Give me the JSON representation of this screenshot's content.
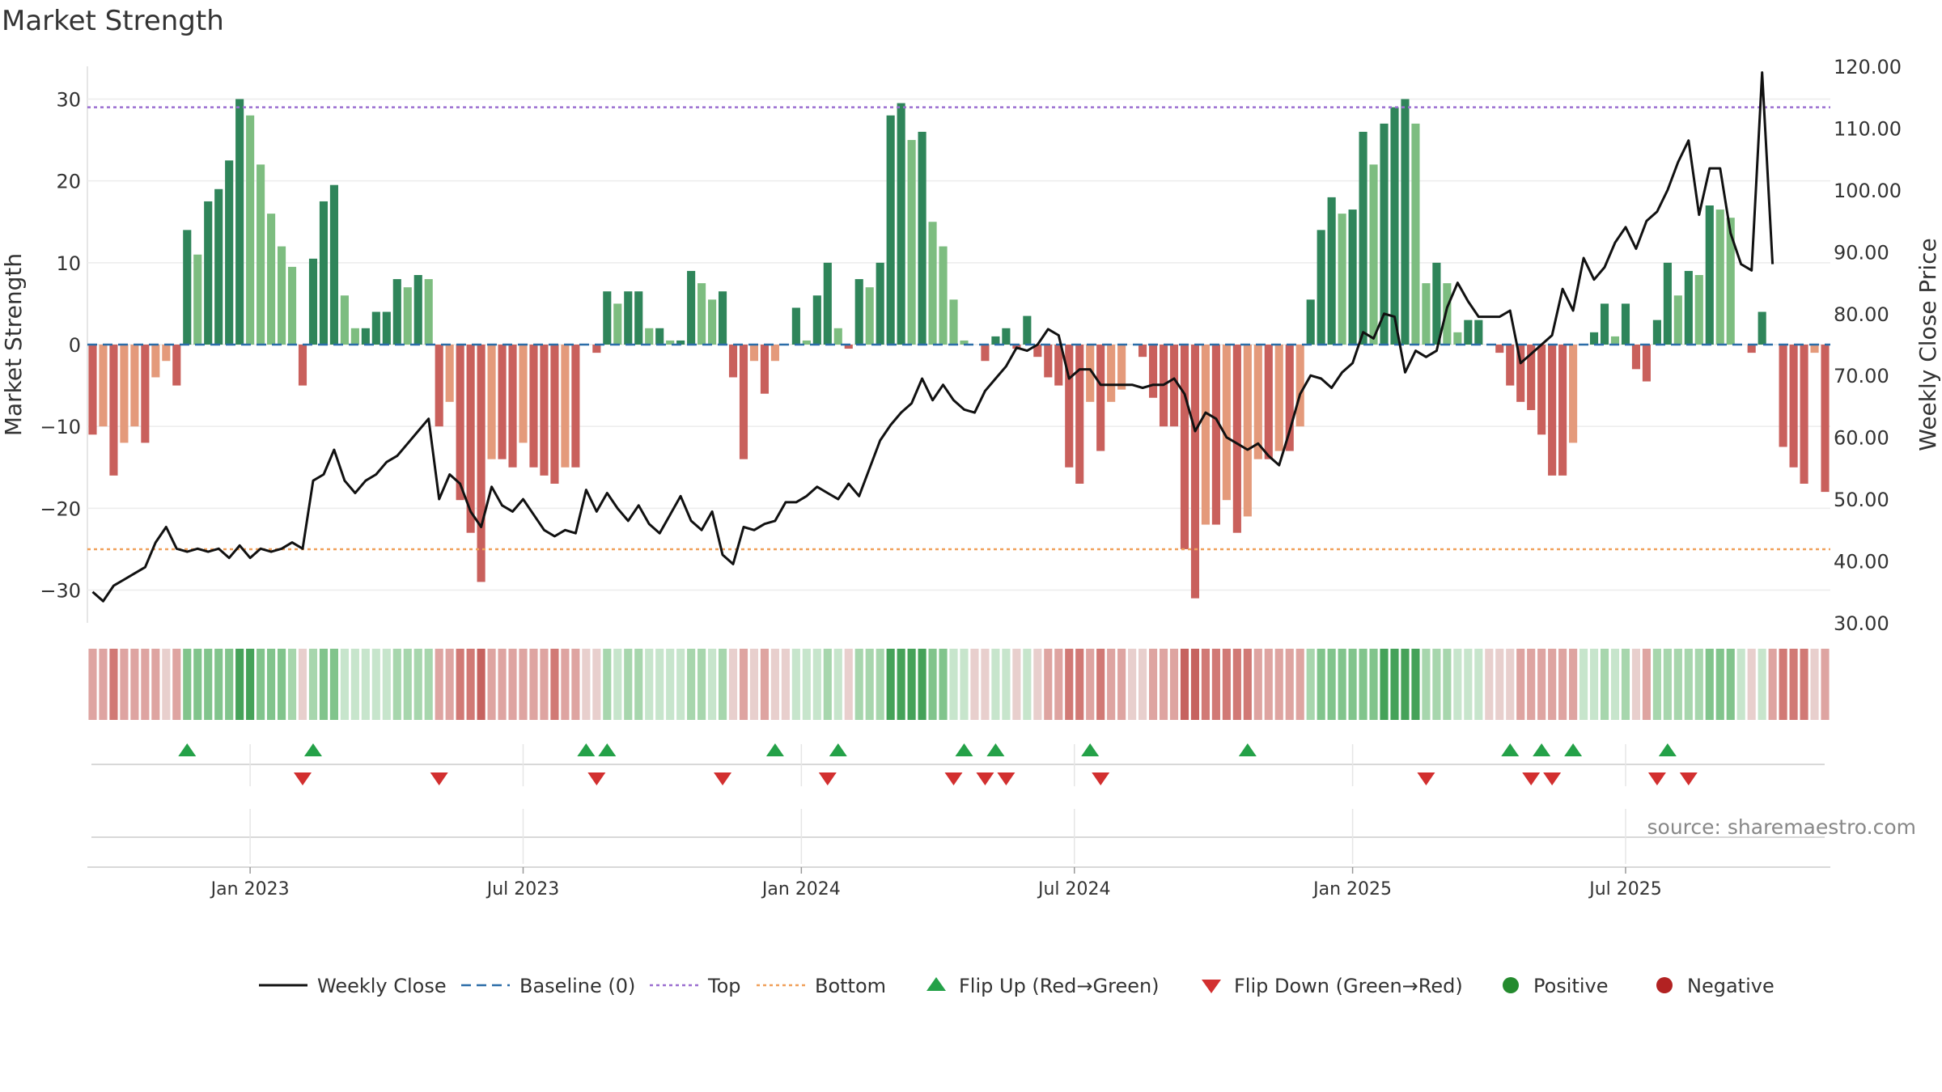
{
  "chart_data": {
    "type": "bar",
    "title": "Market Strength",
    "source": "source: sharemaestro.com",
    "left_axis": {
      "label": "Market Strength",
      "ylim": [
        -34,
        34
      ],
      "ticks": [
        30,
        20,
        10,
        0,
        -10,
        -20,
        -30
      ]
    },
    "right_axis": {
      "label": "Weekly Close Price",
      "ylim": [
        30,
        120
      ],
      "ticks": [
        "120.00",
        "110.00",
        "100.00",
        "90.00",
        "80.00",
        "70.00",
        "60.00",
        "50.00",
        "40.00",
        "30.00"
      ]
    },
    "x_ticks": [
      "Jan 2023",
      "Jul 2023",
      "Jan 2024",
      "Jul 2024",
      "Jan 2025",
      "Jul 2025"
    ],
    "x_tick_positions": [
      15.5,
      41.5,
      68,
      94,
      120.5,
      146.5
    ],
    "top_level": 29,
    "bottom_level": -25,
    "strength": [
      -11,
      -10,
      -16,
      -12,
      -10,
      -12,
      -4,
      -2,
      -5,
      14,
      11,
      17.5,
      19,
      22.5,
      30,
      28,
      22,
      16,
      12,
      9.5,
      -5,
      10.5,
      17.5,
      19.5,
      6,
      2,
      2,
      4,
      4,
      8,
      7,
      8.5,
      8,
      -10,
      -7,
      -19,
      -23,
      -29,
      -14,
      -14,
      -15,
      -12,
      -15,
      -16,
      -17,
      -15,
      -15,
      0,
      -1,
      6.5,
      5,
      6.5,
      6.5,
      2,
      2,
      0.5,
      0.5,
      9,
      7.5,
      5.5,
      6.5,
      -4,
      -14,
      -2,
      -6,
      -2,
      0,
      4.5,
      0.5,
      6,
      10,
      2,
      -0.5,
      8,
      7,
      10,
      28,
      29.5,
      25,
      26,
      15,
      12,
      5.5,
      0.5,
      0,
      -2,
      1,
      2,
      -0.5,
      3.5,
      -1.5,
      -4,
      -5,
      -15,
      -17,
      -7,
      -13,
      -7,
      -5.5,
      0,
      -1.5,
      -6.5,
      -10,
      -10,
      -25,
      -31,
      -22,
      -22,
      -19,
      -23,
      -21,
      -14,
      -14,
      -13,
      -13,
      -10,
      5.5,
      14,
      18,
      16,
      16.5,
      26,
      22,
      27,
      29,
      30,
      27,
      7.5,
      10,
      7.5,
      1.5,
      3,
      3,
      0,
      -1,
      -5,
      -7,
      -8,
      -11,
      -16,
      -16,
      -12,
      0,
      1.5,
      5,
      1,
      5,
      -3,
      -4.5,
      3,
      10,
      6,
      9,
      8.5,
      17,
      16.5,
      15.5,
      0,
      -1,
      4,
      0,
      -12.5,
      -15,
      -17,
      -1,
      -18
    ],
    "weekly_close": [
      35,
      33.5,
      36,
      37,
      38,
      39,
      43,
      45.5,
      42,
      41.5,
      42,
      41.5,
      42,
      40.5,
      42.5,
      40.5,
      42,
      41.5,
      42,
      43,
      42,
      53,
      54,
      58,
      53,
      51,
      53,
      54,
      56,
      57,
      59,
      61,
      63,
      50,
      54,
      52.5,
      48,
      45.5,
      52,
      49,
      48,
      50,
      47.5,
      45,
      44,
      45,
      44.5,
      51.5,
      48,
      51,
      48.5,
      46.5,
      49,
      46,
      44.5,
      47.5,
      50.5,
      46.5,
      45,
      48,
      41,
      39.5,
      45.5,
      45,
      46,
      46.5,
      49.5,
      49.5,
      50.5,
      52,
      51,
      50,
      52.5,
      50.5,
      55,
      59.5,
      62,
      64,
      65.5,
      69.5,
      66,
      68.5,
      66,
      64.5,
      64,
      67.5,
      69.5,
      71.5,
      74.5,
      74,
      75,
      77.5,
      76.5,
      69.5,
      71,
      71,
      68.5,
      68.5,
      68.5,
      68.5,
      68,
      68.5,
      68.5,
      69.5,
      67,
      61,
      64,
      63,
      60,
      59,
      58,
      59,
      57,
      55.5,
      61,
      67,
      70,
      69.5,
      68,
      70.5,
      72,
      77,
      76,
      80,
      79.5,
      70.5,
      74,
      73,
      74,
      81,
      85,
      82,
      79.5,
      79.5,
      79.5,
      80.5,
      72,
      73.5,
      75,
      76.5,
      84,
      80.5,
      89,
      85.5,
      87.5,
      91.5,
      94,
      90.5,
      95,
      96.5,
      100,
      104.5,
      108,
      96,
      103.5,
      103.5,
      93,
      88,
      87,
      119,
      88
    ],
    "bar_colors": [
      "rgb(222,164,161)",
      "rgb(222,164,161)",
      "rgb(209,121,117)",
      "rgb(222,164,161)",
      "rgb(222,164,161)",
      "rgb(222,164,161)",
      "rgb(222,164,161)",
      "rgb(232,207,205)",
      "rgb(222,164,161)",
      "rgb(129,196,140)",
      "rgb(129,196,140)",
      "rgb(129,196,140)",
      "rgb(129,196,140)",
      "rgb(129,196,140)",
      "rgb(69,162,89)",
      "rgb(69,162,89)",
      "rgb(129,196,140)",
      "rgb(129,196,140)",
      "rgb(129,196,140)",
      "rgb(167,214,173)",
      "rgb(232,207,205)",
      "rgb(167,214,173)",
      "rgb(129,196,140)",
      "rgb(129,196,140)",
      "rgb(199,229,204)",
      "rgb(199,229,204)",
      "rgb(199,229,204)",
      "rgb(199,229,204)",
      "rgb(199,229,204)",
      "rgb(167,214,173)",
      "rgb(167,214,173)",
      "rgb(167,214,173)",
      "rgb(167,214,173)",
      "rgb(222,164,161)",
      "rgb(222,164,161)",
      "rgb(209,121,117)",
      "rgb(209,121,117)",
      "rgb(198,98,95)",
      "rgb(222,164,161)",
      "rgb(222,164,161)",
      "rgb(222,164,161)",
      "rgb(222,164,161)",
      "rgb(222,164,161)",
      "rgb(222,164,161)",
      "rgb(209,121,117)",
      "rgb(222,164,161)",
      "rgb(222,164,161)",
      "rgb(232,207,205)",
      "rgb(232,207,205)",
      "rgb(167,214,173)",
      "rgb(199,229,204)",
      "rgb(167,214,173)",
      "rgb(167,214,173)",
      "rgb(199,229,204)",
      "rgb(199,229,204)",
      "rgb(199,229,204)",
      "rgb(199,229,204)",
      "rgb(167,214,173)",
      "rgb(167,214,173)",
      "rgb(199,229,204)",
      "rgb(167,214,173)",
      "rgb(232,207,205)",
      "rgb(222,164,161)",
      "rgb(232,207,205)",
      "rgb(222,164,161)",
      "rgb(232,207,205)",
      "rgb(232,207,205)",
      "rgb(199,229,204)",
      "rgb(199,229,204)",
      "rgb(199,229,204)",
      "rgb(167,214,173)",
      "rgb(199,229,204)",
      "rgb(232,207,205)",
      "rgb(167,214,173)",
      "rgb(167,214,173)",
      "rgb(167,214,173)",
      "rgb(69,162,89)",
      "rgb(69,162,89)",
      "rgb(69,162,89)",
      "rgb(69,162,89)",
      "rgb(129,196,140)",
      "rgb(129,196,140)",
      "rgb(199,229,204)",
      "rgb(199,229,204)",
      "rgb(232,207,205)",
      "rgb(232,207,205)",
      "rgb(199,229,204)",
      "rgb(199,229,204)",
      "rgb(232,207,205)",
      "rgb(199,229,204)",
      "rgb(232,207,205)",
      "rgb(222,164,161)",
      "rgb(222,164,161)",
      "rgb(209,121,117)",
      "rgb(209,121,117)",
      "rgb(222,164,161)",
      "rgb(209,121,117)",
      "rgb(222,164,161)",
      "rgb(222,164,161)",
      "rgb(232,207,205)",
      "rgb(232,207,205)",
      "rgb(222,164,161)",
      "rgb(222,164,161)",
      "rgb(222,164,161)",
      "rgb(198,98,95)",
      "rgb(198,98,95)",
      "rgb(209,121,117)",
      "rgb(209,121,117)",
      "rgb(209,121,117)",
      "rgb(209,121,117)",
      "rgb(209,121,117)",
      "rgb(222,164,161)",
      "rgb(222,164,161)",
      "rgb(222,164,161)",
      "rgb(222,164,161)",
      "rgb(222,164,161)",
      "rgb(167,214,173)",
      "rgb(129,196,140)",
      "rgb(129,196,140)",
      "rgb(129,196,140)",
      "rgb(129,196,140)",
      "rgb(129,196,140)",
      "rgb(129,196,140)",
      "rgb(69,162,89)",
      "rgb(69,162,89)",
      "rgb(69,162,89)",
      "rgb(69,162,89)",
      "rgb(167,214,173)",
      "rgb(167,214,173)",
      "rgb(167,214,173)",
      "rgb(199,229,204)",
      "rgb(199,229,204)",
      "rgb(199,229,204)",
      "rgb(232,207,205)",
      "rgb(232,207,205)",
      "rgb(232,207,205)",
      "rgb(222,164,161)",
      "rgb(222,164,161)",
      "rgb(222,164,161)",
      "rgb(222,164,161)",
      "rgb(222,164,161)",
      "rgb(222,164,161)",
      "rgb(199,229,204)",
      "rgb(199,229,204)",
      "rgb(167,214,173)",
      "rgb(199,229,204)",
      "rgb(167,214,173)",
      "rgb(232,207,205)",
      "rgb(222,164,161)",
      "rgb(167,214,173)",
      "rgb(167,214,173)",
      "rgb(167,214,173)",
      "rgb(167,214,173)",
      "rgb(167,214,173)",
      "rgb(129,196,140)",
      "rgb(129,196,140)",
      "rgb(129,196,140)",
      "rgb(199,229,204)",
      "rgb(232,207,205)",
      "rgb(199,229,204)",
      "rgb(222,164,161)",
      "rgb(209,121,117)",
      "rgb(209,121,117)",
      "rgb(209,121,117)",
      "rgb(232,207,205)",
      "rgb(222,164,161)"
    ],
    "flip_up_weeks": [
      9,
      21,
      47,
      49,
      65,
      71,
      83,
      86,
      95,
      110,
      135,
      138,
      141,
      150
    ],
    "flip_down_weeks": [
      20,
      33,
      48,
      60,
      70,
      82,
      85,
      87,
      96,
      127,
      137,
      139,
      149,
      152
    ],
    "colors": {
      "strong_green": "#2f855a",
      "light_green": "#7dbd80",
      "strong_red": "#c9605c",
      "light_red": "#e49a7b",
      "weekly_close": "#111111",
      "baseline": "#2b6da8",
      "top": "#9b6fd0",
      "bottom": "#f0a05a",
      "flip_up": "#24a148",
      "flip_down": "#d22f2f",
      "positive": "#248a2e",
      "negative": "#b22222"
    },
    "legend": [
      {
        "label": "Weekly Close",
        "type": "line",
        "color": "#111111"
      },
      {
        "label": "Baseline (0)",
        "type": "dash",
        "color": "#2b6da8"
      },
      {
        "label": "Top",
        "type": "dot",
        "color": "#9b6fd0"
      },
      {
        "label": "Bottom",
        "type": "dot",
        "color": "#f0a05a"
      },
      {
        "label": "Flip Up (Red→Green)",
        "type": "tri-up",
        "color": "#24a148"
      },
      {
        "label": "Flip Down (Green→Red)",
        "type": "tri-down",
        "color": "#d22f2f"
      },
      {
        "label": "Positive",
        "type": "circle",
        "color": "#248a2e"
      },
      {
        "label": "Negative",
        "type": "circle",
        "color": "#b22222"
      }
    ]
  }
}
